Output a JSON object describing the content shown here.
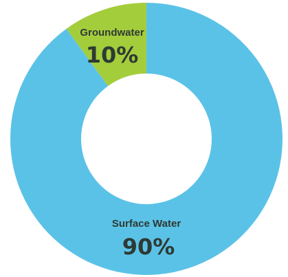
{
  "chart_data": {
    "type": "pie",
    "donut": true,
    "slices": [
      {
        "label": "Surface Water",
        "value": 90,
        "value_label": "90%",
        "color": "#5bc2e7"
      },
      {
        "label": "Groundwater",
        "value": 10,
        "value_label": "10%",
        "color": "#a4cd3c"
      }
    ],
    "legend": false,
    "background": "#ffffff"
  }
}
